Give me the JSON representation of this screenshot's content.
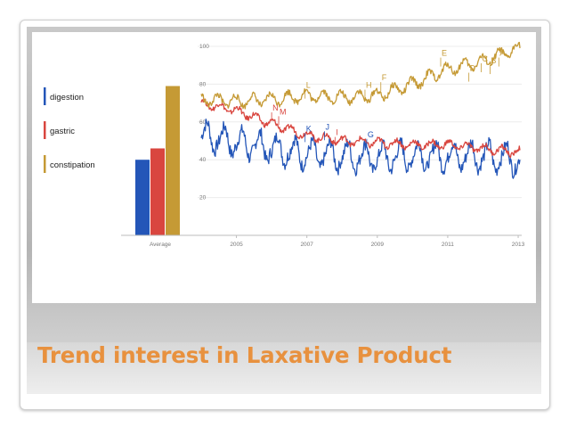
{
  "slide": {
    "title": "Trend interest in Laxative Product"
  },
  "chart_data": {
    "type": "line",
    "y_ticks": [
      "100",
      "80",
      "60",
      "40",
      "20"
    ],
    "ylim": [
      0,
      100
    ],
    "xlim": [
      2004,
      2013.1
    ],
    "x_ticks": [
      {
        "label": "2005",
        "x": 2005
      },
      {
        "label": "2007",
        "x": 2007
      },
      {
        "label": "2009",
        "x": 2009
      },
      {
        "label": "2011",
        "x": 2011
      },
      {
        "label": "2013",
        "x": 2013
      }
    ],
    "grid": true,
    "legend_position": "left",
    "average_label": "Average",
    "series": [
      {
        "name": "digestion",
        "color": "#2456b8",
        "average": 40,
        "base": [
          [
            2004,
            55
          ],
          [
            2005,
            51
          ],
          [
            2006,
            48
          ],
          [
            2007,
            45
          ],
          [
            2008,
            44
          ],
          [
            2009,
            43
          ],
          [
            2010,
            44
          ],
          [
            2011,
            44
          ],
          [
            2012,
            44
          ],
          [
            2013,
            42
          ]
        ],
        "amp": 9
      },
      {
        "name": "gastric",
        "color": "#d9463f",
        "average": 46,
        "base": [
          [
            2004,
            70
          ],
          [
            2005,
            66
          ],
          [
            2006,
            59
          ],
          [
            2007,
            53
          ],
          [
            2008,
            50
          ],
          [
            2009,
            49
          ],
          [
            2010,
            48
          ],
          [
            2011,
            48
          ],
          [
            2012,
            46
          ],
          [
            2013,
            44
          ]
        ],
        "amp": 2
      },
      {
        "name": "constipation",
        "color": "#c59a35",
        "average": 79,
        "base": [
          [
            2004,
            72
          ],
          [
            2005,
            71
          ],
          [
            2006,
            72
          ],
          [
            2007,
            74
          ],
          [
            2008,
            73
          ],
          [
            2009,
            74
          ],
          [
            2010,
            80
          ],
          [
            2011,
            88
          ],
          [
            2012,
            92
          ],
          [
            2013,
            99
          ]
        ],
        "amp": 3
      }
    ],
    "annotations": [
      {
        "letter": "A",
        "x": 2012.45,
        "y": 95,
        "color": "#c59a35"
      },
      {
        "letter": "B",
        "x": 2012.2,
        "y": 91,
        "color": "#c59a35"
      },
      {
        "letter": "C",
        "x": 2011.95,
        "y": 92,
        "color": "#c59a35"
      },
      {
        "letter": "D",
        "x": 2011.6,
        "y": 87,
        "color": "#c59a35"
      },
      {
        "letter": "E",
        "x": 2010.8,
        "y": 95,
        "color": "#c59a35"
      },
      {
        "letter": "F",
        "x": 2009.1,
        "y": 82,
        "color": "#c59a35"
      },
      {
        "letter": "G",
        "x": 2008.7,
        "y": 52,
        "color": "#2456b8"
      },
      {
        "letter": "H",
        "x": 2008.65,
        "y": 78,
        "color": "#c59a35"
      },
      {
        "letter": "I",
        "x": 2007.8,
        "y": 53,
        "color": "#d9463f"
      },
      {
        "letter": "J",
        "x": 2007.5,
        "y": 56,
        "color": "#2456b8"
      },
      {
        "letter": "K",
        "x": 2006.95,
        "y": 55,
        "color": "#2456b8"
      },
      {
        "letter": "L",
        "x": 2006.95,
        "y": 78,
        "color": "#c59a35"
      },
      {
        "letter": "M",
        "x": 2006.2,
        "y": 64,
        "color": "#d9463f"
      },
      {
        "letter": "N",
        "x": 2006.0,
        "y": 66,
        "color": "#d9463f"
      }
    ]
  }
}
